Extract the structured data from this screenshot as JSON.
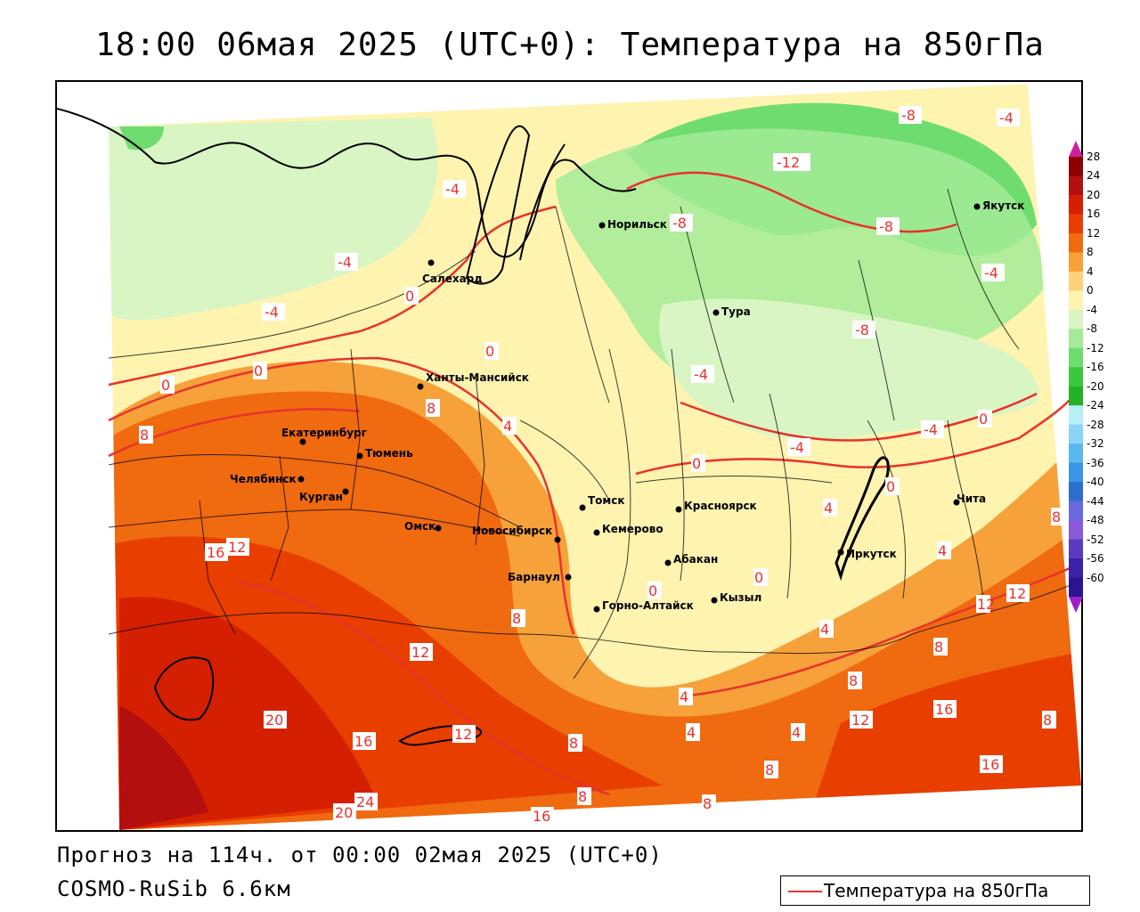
{
  "title": "18:00 06мая 2025 (UTC+0): Температура на 850гПа",
  "forecast_line": "Прогноз на 114ч. от 00:00 02мая 2025 (UTC+0)",
  "model_line": "COSMO-RuSib 6.6км",
  "legend": {
    "label": "Температура на 850гПа",
    "color": "#e8322d"
  },
  "colorbar": {
    "labels": [
      "28",
      "24",
      "20",
      "16",
      "12",
      "8",
      "4",
      "0",
      "-4",
      "-8",
      "-12",
      "-16",
      "-20",
      "-24",
      "-28",
      "-32",
      "-36",
      "-40",
      "-44",
      "-48",
      "-52",
      "-56",
      "-60"
    ],
    "colors": [
      "#8b0000",
      "#b30f0f",
      "#d42000",
      "#e83e00",
      "#f06a10",
      "#f6a13a",
      "#fcd27a",
      "#fff3b0",
      "#d9f5c4",
      "#a3eb97",
      "#6fdc6f",
      "#3cc83c",
      "#26b026",
      "#b8eef6",
      "#8ad4f7",
      "#5ab7ef",
      "#3a96e3",
      "#2b6fcf",
      "#6a6ae0",
      "#8a5ad8",
      "#5a3ac0",
      "#3a22a8",
      "#2a1490"
    ]
  },
  "cities": [
    {
      "name": "Якутск"
    },
    {
      "name": "Норильск"
    },
    {
      "name": "Салехард"
    },
    {
      "name": "Тура"
    },
    {
      "name": "Ханты-Мансийск"
    },
    {
      "name": "Екатеринбург"
    },
    {
      "name": "Тюмень"
    },
    {
      "name": "Челябинск"
    },
    {
      "name": "Курган"
    },
    {
      "name": "Омск"
    },
    {
      "name": "Новосибирск"
    },
    {
      "name": "Томск"
    },
    {
      "name": "Красноярск"
    },
    {
      "name": "Кемерово"
    },
    {
      "name": "Барнаул"
    },
    {
      "name": "Абакан"
    },
    {
      "name": "Горно-Алтайск"
    },
    {
      "name": "Кызыл"
    },
    {
      "name": "Иркутск"
    },
    {
      "name": "Чита"
    }
  ],
  "isotherm_labels": [
    "-12",
    "-8",
    "-8",
    "-8",
    "-8",
    "-4",
    "-4",
    "-4",
    "-4",
    "-4",
    "-4",
    "-4",
    "-4",
    "0",
    "0",
    "0",
    "0",
    "0",
    "0",
    "0",
    "0",
    "0",
    "4",
    "4",
    "4",
    "4",
    "4",
    "4",
    "4",
    "8",
    "8",
    "8",
    "8",
    "8",
    "8",
    "8",
    "8",
    "8",
    "8",
    "8",
    "12",
    "12",
    "12",
    "12",
    "12",
    "12",
    "16",
    "16",
    "16",
    "16",
    "16",
    "20",
    "20",
    "24"
  ]
}
